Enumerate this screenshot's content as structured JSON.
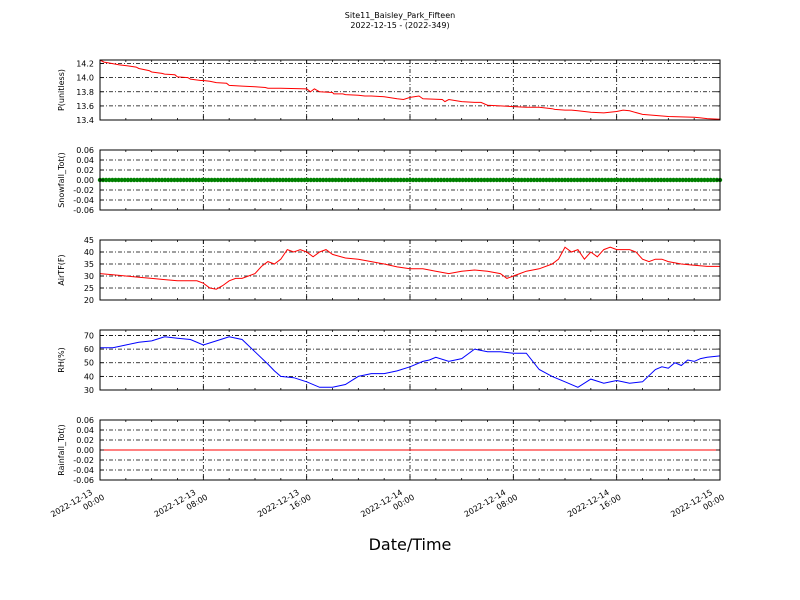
{
  "title_line1": "Site11_Baisley_Park_Fifteen",
  "title_line2": "2022-12-15 - (2022-349)",
  "xlabel": "Date/Time",
  "x_ticks": [
    [
      "2022-12-13",
      "00:00"
    ],
    [
      "2022-12-13",
      "08:00"
    ],
    [
      "2022-12-13",
      "16:00"
    ],
    [
      "2022-12-14",
      "00:00"
    ],
    [
      "2022-12-14",
      "08:00"
    ],
    [
      "2022-12-14",
      "16:00"
    ],
    [
      "2022-12-15",
      "00:00"
    ]
  ],
  "chart_data": [
    {
      "type": "line",
      "ylabel": "P(unitless)",
      "color": "#ff0000",
      "ylim": [
        13.4,
        14.25
      ],
      "yticks": [
        "14.2",
        "14.0",
        "13.8",
        "13.6",
        "13.4"
      ],
      "ytick_values": [
        14.2,
        14.0,
        13.8,
        13.6,
        13.4
      ],
      "xlim": [
        0,
        48
      ],
      "grid": true,
      "x": [
        0,
        0.3,
        0.6,
        1.5,
        2,
        2.8,
        3,
        3.8,
        4,
        4.8,
        5,
        5.8,
        6,
        6.8,
        7,
        7.8,
        8,
        8.5,
        9,
        9.8,
        10,
        11,
        12,
        12.8,
        13,
        14,
        16,
        16.3,
        16.6,
        16.9,
        17,
        18,
        18.1,
        18.8,
        19,
        20,
        20.5,
        21,
        22,
        23,
        23.5,
        24,
        24.7,
        25,
        26.5,
        26.7,
        27,
        28,
        29,
        29.5,
        30,
        31,
        32,
        33,
        34,
        35,
        35.2,
        36,
        36.5,
        37,
        38,
        39,
        40,
        40.5,
        41,
        42,
        44,
        46,
        46.5,
        47,
        48
      ],
      "y": [
        14.25,
        14.22,
        14.21,
        14.18,
        14.17,
        14.15,
        14.13,
        14.1,
        14.08,
        14.06,
        14.05,
        14.04,
        14.01,
        14.0,
        13.98,
        13.96,
        13.96,
        13.95,
        13.93,
        13.92,
        13.89,
        13.88,
        13.87,
        13.86,
        13.85,
        13.85,
        13.84,
        13.8,
        13.84,
        13.81,
        13.8,
        13.79,
        13.77,
        13.77,
        13.76,
        13.75,
        13.74,
        13.74,
        13.73,
        13.7,
        13.69,
        13.72,
        13.74,
        13.7,
        13.69,
        13.66,
        13.69,
        13.66,
        13.65,
        13.65,
        13.61,
        13.6,
        13.59,
        13.58,
        13.58,
        13.56,
        13.55,
        13.54,
        13.54,
        13.53,
        13.51,
        13.5,
        13.52,
        13.54,
        13.53,
        13.48,
        13.45,
        13.44,
        13.43,
        13.42,
        13.41
      ]
    },
    {
      "type": "line",
      "ylabel": "Snowfall_Tot()",
      "color": "#008000",
      "ylim": [
        -0.06,
        0.06
      ],
      "yticks": [
        "0.06",
        "0.04",
        "0.02",
        "0.00",
        "-0.02",
        "-0.04",
        "-0.06"
      ],
      "ytick_values": [
        0.06,
        0.04,
        0.02,
        0.0,
        -0.02,
        -0.04,
        -0.06
      ],
      "xlim": [
        0,
        48
      ],
      "grid": true,
      "markers": true,
      "x": [
        0,
        48
      ],
      "y": [
        0,
        0
      ]
    },
    {
      "type": "line",
      "ylabel": "AirTF(F)",
      "color": "#ff0000",
      "ylim": [
        20,
        45
      ],
      "yticks": [
        "45",
        "40",
        "35",
        "30",
        "25",
        "20"
      ],
      "ytick_values": [
        45,
        40,
        35,
        30,
        25,
        20
      ],
      "xlim": [
        0,
        48
      ],
      "grid": true,
      "x": [
        0,
        1,
        2,
        3,
        4,
        5,
        6,
        7,
        7.5,
        8,
        8.5,
        9,
        9.5,
        10,
        10.5,
        11,
        12,
        12.5,
        13,
        13.5,
        14,
        14.5,
        15,
        15.5,
        16,
        16.5,
        17,
        17.5,
        18,
        19,
        20,
        21,
        22,
        23,
        24,
        25,
        26,
        27,
        28,
        29,
        30,
        31,
        31.5,
        32,
        32.5,
        33,
        34,
        35,
        35.5,
        36,
        36.5,
        37,
        37.5,
        38,
        38.5,
        39,
        39.5,
        40,
        41,
        41.5,
        42,
        42.5,
        43,
        43.5,
        44,
        45,
        46,
        47,
        48
      ],
      "y": [
        31,
        30.5,
        30,
        29.5,
        29,
        28.5,
        28,
        28,
        28,
        27,
        25,
        24.5,
        26,
        28,
        29,
        29,
        31,
        34,
        36,
        35,
        37,
        41,
        40,
        41,
        40,
        38,
        40,
        41,
        39,
        37.5,
        37,
        36,
        35,
        33.8,
        33,
        33,
        32,
        31,
        32,
        32.5,
        32,
        31,
        29,
        30,
        31,
        32,
        33,
        35,
        37,
        42,
        40,
        41,
        37,
        40,
        38,
        41,
        42,
        41,
        41,
        40,
        37,
        36,
        37,
        37,
        36,
        35,
        34.5,
        34,
        34
      ]
    },
    {
      "type": "line",
      "ylabel": "RH(%)",
      "color": "#0000ff",
      "ylim": [
        30,
        74
      ],
      "yticks": [
        "70",
        "60",
        "50",
        "40",
        "30"
      ],
      "ytick_values": [
        70,
        60,
        50,
        40,
        30
      ],
      "xlim": [
        0,
        48
      ],
      "grid": true,
      "x": [
        0,
        1,
        2,
        3,
        4,
        5,
        6,
        7,
        8,
        9,
        10,
        11,
        12,
        13,
        13.5,
        14,
        15,
        16,
        17,
        18,
        19,
        20,
        21,
        22,
        23,
        24,
        25,
        25.5,
        26,
        27,
        28,
        29,
        30,
        31,
        32,
        33,
        34,
        35,
        36,
        37,
        38,
        39,
        40,
        41,
        42,
        43,
        43.5,
        44,
        44.5,
        45,
        45.5,
        46,
        46.5,
        47,
        48
      ],
      "y": [
        61,
        61,
        63,
        65,
        66,
        69,
        68,
        67,
        63,
        66,
        69,
        67,
        58,
        49,
        44,
        40,
        39,
        36,
        32,
        32,
        34,
        40,
        42,
        42,
        44,
        47,
        51,
        52,
        54,
        51,
        53,
        60,
        58,
        58,
        57,
        57,
        45,
        40,
        36,
        32,
        38,
        35,
        37,
        35,
        36,
        45,
        47,
        46,
        50,
        48,
        52,
        51,
        53,
        54,
        55
      ]
    },
    {
      "type": "line",
      "ylabel": "Rainfall_Tot()",
      "color": "#ff0000",
      "ylim": [
        -0.06,
        0.06
      ],
      "yticks": [
        "0.06",
        "0.04",
        "0.02",
        "0.00",
        "-0.02",
        "-0.04",
        "-0.06"
      ],
      "ytick_values": [
        0.06,
        0.04,
        0.02,
        0.0,
        -0.02,
        -0.04,
        -0.06
      ],
      "xlim": [
        0,
        48
      ],
      "grid": true,
      "x": [
        0,
        48
      ],
      "y": [
        0,
        0
      ]
    }
  ]
}
